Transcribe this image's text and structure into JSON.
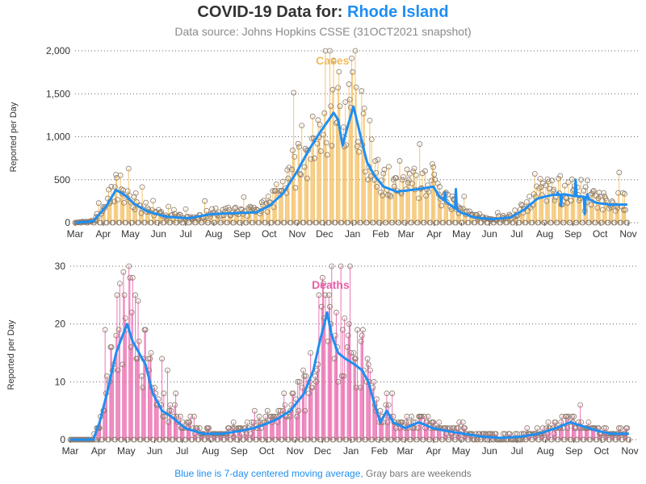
{
  "header": {
    "title_prefix": "COVID-19 Data for: ",
    "state": "Rhode Island",
    "subtitle": "Data source: Johns Hopkins CSSE (31OCT2021 snapshot)"
  },
  "footer": {
    "blue_text": "Blue line is 7-day centered moving average,",
    "gray_text": " Gray bars are weekends"
  },
  "colors": {
    "cases": "#f2bc5a",
    "deaths": "#e85ea8",
    "average": "#1f8ef1",
    "marker": "#8c7a6a"
  },
  "chart_data": [
    {
      "type": "bar",
      "name": "cases",
      "label": "Cases",
      "ylabel": "Reported per Day",
      "ylim": [
        0,
        2000
      ],
      "yticks": [
        0,
        500,
        1000,
        1500,
        2000
      ],
      "ytick_labels": [
        "0",
        "500",
        "1,000",
        "1,500",
        "2,000"
      ],
      "x_tick_labels": [
        "Mar",
        "Apr",
        "May",
        "Jun",
        "Jul",
        "Aug",
        "Sep",
        "Oct",
        "Nov",
        "Dec",
        "Jan",
        "Feb",
        "Mar",
        "Apr",
        "May",
        "Jun",
        "Jul",
        "Aug",
        "Sep",
        "Oct",
        "Nov"
      ],
      "grid": "horizontal dotted",
      "avg_anchors": [
        [
          0,
          0
        ],
        [
          20,
          15
        ],
        [
          35,
          200
        ],
        [
          45,
          380
        ],
        [
          55,
          320
        ],
        [
          65,
          220
        ],
        [
          80,
          130
        ],
        [
          100,
          70
        ],
        [
          125,
          50
        ],
        [
          150,
          100
        ],
        [
          175,
          110
        ],
        [
          200,
          120
        ],
        [
          215,
          200
        ],
        [
          230,
          350
        ],
        [
          245,
          600
        ],
        [
          258,
          850
        ],
        [
          270,
          1050
        ],
        [
          280,
          1200
        ],
        [
          285,
          1280
        ],
        [
          290,
          1200
        ],
        [
          295,
          900
        ],
        [
          300,
          1100
        ],
        [
          307,
          1350
        ],
        [
          315,
          1000
        ],
        [
          322,
          700
        ],
        [
          330,
          550
        ],
        [
          340,
          420
        ],
        [
          355,
          360
        ],
        [
          370,
          380
        ],
        [
          385,
          400
        ],
        [
          395,
          420
        ],
        [
          402,
          300
        ],
        [
          412,
          220
        ],
        [
          425,
          120
        ],
        [
          440,
          60
        ],
        [
          460,
          40
        ],
        [
          480,
          60
        ],
        [
          495,
          150
        ],
        [
          510,
          280
        ],
        [
          525,
          320
        ],
        [
          540,
          330
        ],
        [
          550,
          310
        ],
        [
          562,
          300
        ],
        [
          575,
          230
        ],
        [
          590,
          210
        ],
        [
          609,
          210
        ]
      ],
      "avg_extrema": [
        [
          408,
          350
        ],
        [
          420,
          390
        ],
        [
          532,
          350
        ],
        [
          536,
          200
        ],
        [
          552,
          500
        ],
        [
          562,
          100
        ],
        [
          565,
          330
        ],
        [
          590,
          200
        ]
      ]
    },
    {
      "type": "bar",
      "name": "deaths",
      "label": "Deaths",
      "ylabel": "Reported per Day",
      "ylim": [
        0,
        30
      ],
      "yticks": [
        0,
        10,
        20,
        30
      ],
      "ytick_labels": [
        "0",
        "10",
        "20",
        "30"
      ],
      "x_tick_labels": [
        "Mar",
        "Apr",
        "May",
        "Jun",
        "Jul",
        "Aug",
        "Sep",
        "Oct",
        "Nov",
        "Dec",
        "Jan",
        "Feb",
        "Mar",
        "Apr",
        "May",
        "Jun",
        "Jul",
        "Aug",
        "Sep",
        "Oct",
        "Nov"
      ],
      "grid": "horizontal dotted",
      "avg_anchors": [
        [
          0,
          0
        ],
        [
          25,
          0
        ],
        [
          32,
          3
        ],
        [
          40,
          8
        ],
        [
          50,
          15
        ],
        [
          57,
          18
        ],
        [
          62,
          20
        ],
        [
          68,
          17
        ],
        [
          75,
          15
        ],
        [
          82,
          13
        ],
        [
          90,
          8
        ],
        [
          100,
          5
        ],
        [
          110,
          4
        ],
        [
          125,
          2
        ],
        [
          145,
          1
        ],
        [
          165,
          1
        ],
        [
          185,
          1.5
        ],
        [
          200,
          2
        ],
        [
          210,
          2.5
        ],
        [
          225,
          3.5
        ],
        [
          240,
          5
        ],
        [
          255,
          8
        ],
        [
          265,
          12
        ],
        [
          272,
          17
        ],
        [
          277,
          20
        ],
        [
          280,
          22
        ],
        [
          285,
          18
        ],
        [
          292,
          15
        ],
        [
          300,
          14
        ],
        [
          310,
          13
        ],
        [
          318,
          12
        ],
        [
          325,
          10
        ],
        [
          330,
          7
        ],
        [
          338,
          3
        ],
        [
          345,
          5
        ],
        [
          352,
          3
        ],
        [
          365,
          2
        ],
        [
          380,
          3
        ],
        [
          395,
          2
        ],
        [
          410,
          1.5
        ],
        [
          430,
          1
        ],
        [
          450,
          0.5
        ],
        [
          470,
          0.3
        ],
        [
          490,
          0.5
        ],
        [
          510,
          1
        ],
        [
          530,
          2
        ],
        [
          545,
          3
        ],
        [
          555,
          2.5
        ],
        [
          565,
          2
        ],
        [
          575,
          1.5
        ],
        [
          590,
          1
        ],
        [
          609,
          1
        ]
      ]
    }
  ]
}
